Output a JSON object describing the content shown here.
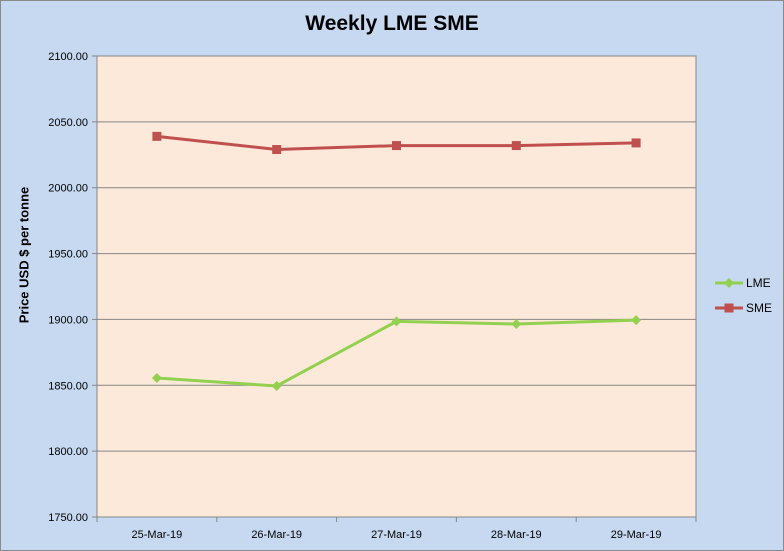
{
  "chart_data": {
    "type": "line",
    "title": "Weekly LME SME",
    "ylabel": "Price USD $ per tonne",
    "xlabel": "",
    "categories": [
      "25-Mar-19",
      "26-Mar-19",
      "27-Mar-19",
      "28-Mar-19",
      "29-Mar-19"
    ],
    "ylim": [
      1750,
      2100
    ],
    "yticks": [
      "1750.00",
      "1800.00",
      "1850.00",
      "1900.00",
      "1950.00",
      "2000.00",
      "2050.00",
      "2100.00"
    ],
    "grid": true,
    "legend_position": "right",
    "series": [
      {
        "name": "LME",
        "color": "#92d050",
        "marker": "diamond",
        "values": [
          1855.5,
          1849.5,
          1898.5,
          1896.5,
          1899.5
        ]
      },
      {
        "name": "SME",
        "color": "#c0504d",
        "marker": "square",
        "values": [
          2039,
          2029,
          2032,
          2032,
          2034
        ]
      }
    ],
    "colors": {
      "plot_background": "#fde9d9",
      "chart_background": "#c6d9f1"
    }
  }
}
